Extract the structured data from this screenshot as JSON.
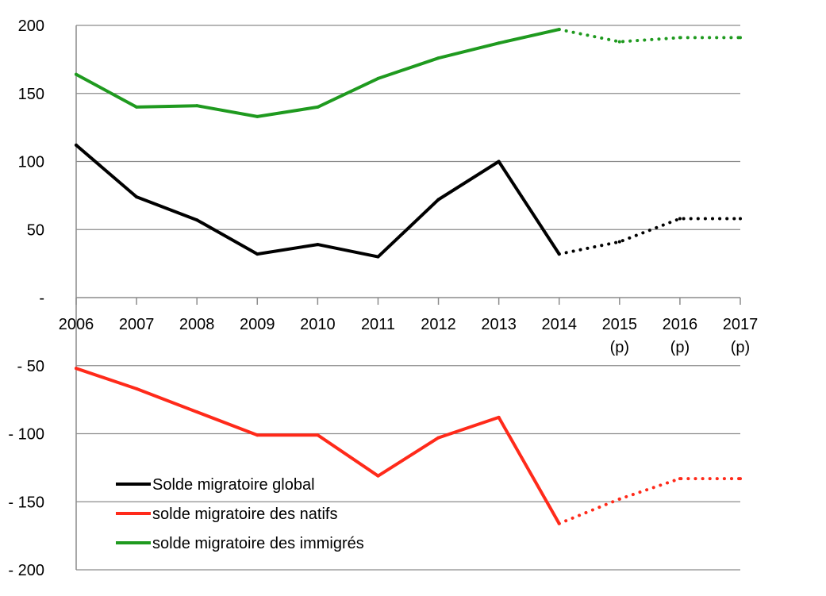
{
  "chart_data": {
    "type": "line",
    "title": "",
    "xlabel": "",
    "ylabel": "",
    "ylim": [
      -200,
      200
    ],
    "y_ticks": [
      {
        "value": 200,
        "label": "200"
      },
      {
        "value": 150,
        "label": "150"
      },
      {
        "value": 100,
        "label": "100"
      },
      {
        "value": 50,
        "label": "50"
      },
      {
        "value": 0,
        "label": "-"
      },
      {
        "value": -50,
        "label": "- 50"
      },
      {
        "value": -100,
        "label": "- 100"
      },
      {
        "value": -150,
        "label": "- 150"
      },
      {
        "value": -200,
        "label": "- 200"
      }
    ],
    "categories": [
      "2006",
      "2007",
      "2008",
      "2009",
      "2010",
      "2011",
      "2012",
      "2013",
      "2014",
      "2015",
      "2016",
      "2017"
    ],
    "category_sublabels": [
      "",
      "",
      "",
      "",
      "",
      "",
      "",
      "",
      "",
      "(p)",
      "(p)",
      "(p)"
    ],
    "projection_start_index": 8,
    "grid": true,
    "legend_position": "bottom-left",
    "series": [
      {
        "name": "Solde migratoire global",
        "color": "#000000",
        "values": [
          112,
          74,
          57,
          32,
          39,
          30,
          72,
          100,
          32,
          41,
          58,
          58
        ]
      },
      {
        "name": "solde migratoire des natifs",
        "color": "#ff2a1a",
        "values": [
          -52,
          -67,
          -84,
          -101,
          -101,
          -131,
          -103,
          -88,
          -166,
          -148,
          -133,
          -133
        ]
      },
      {
        "name": "solde migratoire des immigrés",
        "color": "#1f9a1f",
        "values": [
          164,
          140,
          141,
          133,
          140,
          161,
          176,
          187,
          197,
          188,
          191,
          191
        ]
      }
    ]
  }
}
